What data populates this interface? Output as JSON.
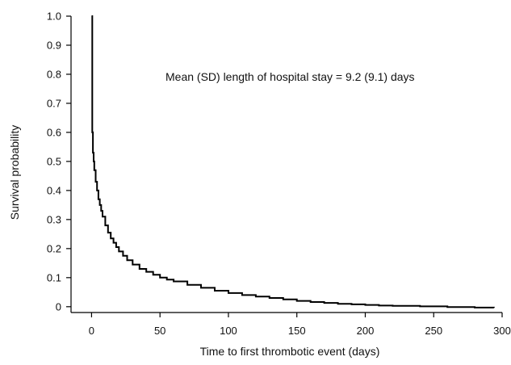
{
  "chart_data": {
    "type": "line",
    "title": "",
    "xlabel": "Time to first thrombotic event (days)",
    "ylabel": "Survival probability",
    "annotation": "Mean (SD) length of hospital stay = 9.2 (9.1) days",
    "xlim": [
      -15,
      300
    ],
    "ylim": [
      -0.02,
      1.0
    ],
    "xticks": [
      0,
      50,
      100,
      150,
      200,
      250,
      300
    ],
    "xtick_labels": [
      "0",
      "50",
      "100",
      "150",
      "200",
      "250",
      "300"
    ],
    "yticks": [
      0,
      0.1,
      0.2,
      0.3,
      0.4,
      0.5,
      0.6,
      0.7,
      0.8,
      0.9,
      1.0
    ],
    "ytick_labels": [
      "0",
      "0.1",
      "0.2",
      "0.3",
      "0.4",
      "0.5",
      "0.6",
      "0.7",
      "0.8",
      "0.9",
      "1.0"
    ],
    "grid": false,
    "step": true,
    "series": [
      {
        "color": "#000000",
        "x": [
          0,
          0.5,
          1,
          1.5,
          2,
          3,
          4,
          5,
          6,
          7,
          8,
          10,
          12,
          14,
          16,
          18,
          20,
          23,
          26,
          30,
          35,
          40,
          45,
          50,
          55,
          60,
          70,
          80,
          90,
          100,
          110,
          120,
          130,
          140,
          150,
          160,
          170,
          180,
          190,
          200,
          210,
          220,
          240,
          260,
          280,
          294
        ],
        "y": [
          1.0,
          0.6,
          0.53,
          0.5,
          0.47,
          0.43,
          0.4,
          0.37,
          0.35,
          0.33,
          0.31,
          0.28,
          0.255,
          0.235,
          0.22,
          0.205,
          0.19,
          0.175,
          0.16,
          0.145,
          0.13,
          0.12,
          0.11,
          0.1,
          0.093,
          0.087,
          0.075,
          0.065,
          0.055,
          0.047,
          0.04,
          0.035,
          0.03,
          0.025,
          0.02,
          0.016,
          0.013,
          0.01,
          0.008,
          0.006,
          0.004,
          0.003,
          0.001,
          -0.001,
          -0.003,
          -0.004
        ]
      }
    ]
  }
}
